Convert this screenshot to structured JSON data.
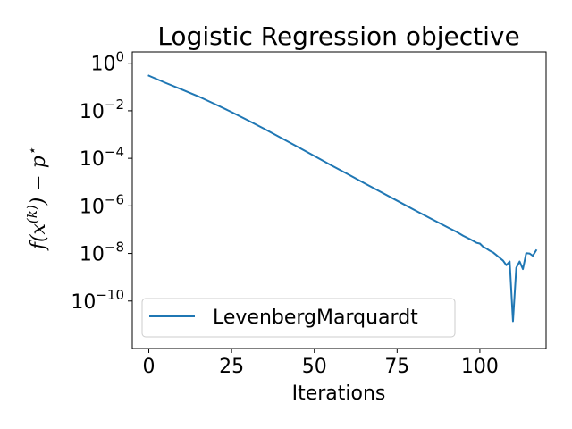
{
  "chart_data": {
    "type": "line",
    "title": "Logistic Regression objective",
    "xlabel": "Iterations",
    "ylabel": {
      "f": "f(x",
      "k": "(k)",
      "rest": ") − p",
      "star": "⋆"
    },
    "xlim": [
      -5,
      120
    ],
    "ylim": [
      1e-12,
      3
    ],
    "yscale": "log",
    "xticks": [
      0,
      25,
      50,
      75,
      100
    ],
    "xtick_labels": [
      "0",
      "25",
      "50",
      "75",
      "100"
    ],
    "yticks": [
      {
        "value": 1,
        "base": "10",
        "exp": "0"
      },
      {
        "value": 0.01,
        "base": "10",
        "exp": "−2"
      },
      {
        "value": 0.0001,
        "base": "10",
        "exp": "−4"
      },
      {
        "value": 1e-06,
        "base": "10",
        "exp": "−6"
      },
      {
        "value": 1e-08,
        "base": "10",
        "exp": "−8"
      },
      {
        "value": 1e-10,
        "base": "10",
        "exp": "−10"
      }
    ],
    "legend": "lower-left",
    "grid": false,
    "series": [
      {
        "name": "LevenbergMarquardt",
        "color": "#1f77b4",
        "x": [
          0,
          5,
          10,
          15,
          20,
          25,
          30,
          35,
          40,
          45,
          50,
          55,
          60,
          65,
          70,
          75,
          80,
          85,
          90,
          93,
          95,
          97,
          99,
          100,
          101,
          102,
          103,
          104,
          105,
          106,
          107,
          108,
          109,
          110,
          111,
          112,
          113,
          114,
          115,
          116,
          117
        ],
        "y": [
          0.3,
          0.15,
          0.078,
          0.04,
          0.019,
          0.0088,
          0.0039,
          0.0017,
          0.00072,
          0.0003,
          0.000125,
          5.2e-05,
          2.2e-05,
          9.2e-06,
          3.9e-06,
          1.65e-06,
          7e-07,
          3e-07,
          1.3e-07,
          8e-08,
          5.5e-08,
          4e-08,
          2.8e-08,
          2.6e-08,
          1.9e-08,
          1.6e-08,
          1.3e-08,
          1.1e-08,
          8.5e-09,
          6.5e-09,
          5e-09,
          3.2e-09,
          4.6e-09,
          1.4e-11,
          2.5e-09,
          4.6e-09,
          2.2e-09,
          1.03e-08,
          1e-08,
          8e-09,
          1.35e-08
        ]
      }
    ]
  }
}
